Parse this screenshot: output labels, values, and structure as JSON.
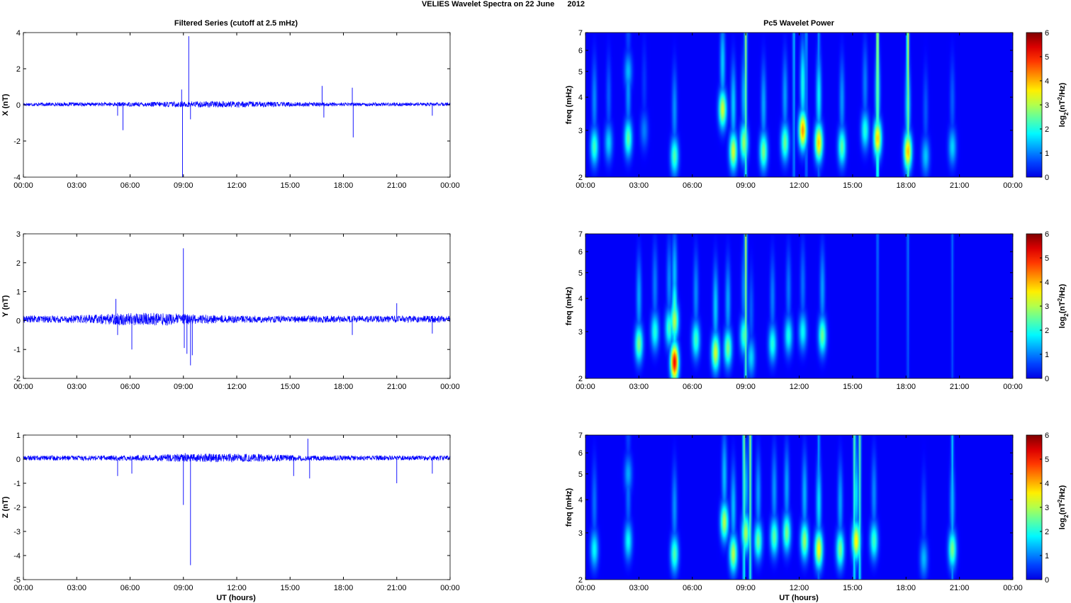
{
  "figure": {
    "suptitle": "VELIES Wavelet Spectra on 22 June      2012",
    "left_title": "Filtered Series (cutoff at 2.5 mHz)",
    "right_title": "Pc5 Wavelet Power",
    "xlabel": "UT (hours)",
    "freq_ylabel": "freq (mHz)",
    "colorbar_label": "log₂(nT²/Hz)",
    "time_ticks": [
      "00:00",
      "03:00",
      "06:00",
      "09:00",
      "12:00",
      "15:00",
      "18:00",
      "21:00",
      "00:00"
    ],
    "colors": {
      "series": "#0000ff",
      "background": "#00008f",
      "axes": "#000000"
    }
  },
  "chart_data": [
    {
      "type": "line",
      "name": "Filtered X",
      "ylabel": "X (nT)",
      "x_range_hours": [
        0,
        24
      ],
      "ylim": [
        -4,
        4
      ],
      "yticks": [
        -4,
        -2,
        0,
        2,
        4
      ],
      "baseline": 0.03,
      "noise_amplitude": 0.1,
      "spikes": [
        {
          "t": 5.6,
          "v": -1.4
        },
        {
          "t": 5.3,
          "v": -0.6
        },
        {
          "t": 8.9,
          "v": 0.85
        },
        {
          "t": 8.95,
          "v": -4.0
        },
        {
          "t": 9.3,
          "v": 3.8
        },
        {
          "t": 9.4,
          "v": -0.8
        },
        {
          "t": 16.8,
          "v": 1.05
        },
        {
          "t": 16.9,
          "v": -0.7
        },
        {
          "t": 18.5,
          "v": 0.95
        },
        {
          "t": 18.55,
          "v": -1.8
        },
        {
          "t": 23.0,
          "v": -0.6
        }
      ]
    },
    {
      "type": "line",
      "name": "Filtered Y",
      "ylabel": "Y (nT)",
      "x_range_hours": [
        0,
        24
      ],
      "ylim": [
        -2,
        3
      ],
      "yticks": [
        -2,
        -1,
        0,
        1,
        2,
        3
      ],
      "baseline": 0.05,
      "noise_amplitude": 0.12,
      "spikes": [
        {
          "t": 5.2,
          "v": 0.75
        },
        {
          "t": 5.3,
          "v": -0.5
        },
        {
          "t": 6.1,
          "v": -1.0
        },
        {
          "t": 9.0,
          "v": 2.5
        },
        {
          "t": 9.05,
          "v": -0.95
        },
        {
          "t": 9.2,
          "v": -1.15
        },
        {
          "t": 9.4,
          "v": -1.55
        },
        {
          "t": 9.5,
          "v": -1.2
        },
        {
          "t": 18.5,
          "v": -0.5
        },
        {
          "t": 21.0,
          "v": 0.6
        },
        {
          "t": 23.0,
          "v": -0.45
        }
      ]
    },
    {
      "type": "line",
      "name": "Filtered Z",
      "ylabel": "Z (nT)",
      "x_range_hours": [
        0,
        24
      ],
      "ylim": [
        -5,
        1
      ],
      "yticks": [
        -5,
        -4,
        -3,
        -2,
        -1,
        0,
        1
      ],
      "baseline": 0.05,
      "noise_amplitude": 0.1,
      "spikes": [
        {
          "t": 5.3,
          "v": -0.7
        },
        {
          "t": 6.1,
          "v": -0.6
        },
        {
          "t": 9.0,
          "v": -1.9
        },
        {
          "t": 9.1,
          "v": 0.25
        },
        {
          "t": 9.4,
          "v": -4.4
        },
        {
          "t": 15.2,
          "v": -0.7
        },
        {
          "t": 16.0,
          "v": 0.85
        },
        {
          "t": 16.1,
          "v": -0.8
        },
        {
          "t": 21.0,
          "v": -1.0
        },
        {
          "t": 23.0,
          "v": -0.6
        }
      ]
    },
    {
      "type": "heatmap",
      "name": "Pc5 Wavelet Power X",
      "x_range_hours": [
        0,
        24
      ],
      "ylim_mHz": [
        2,
        7
      ],
      "y_scale": "log",
      "yticks": [
        2,
        3,
        4,
        5,
        6,
        7
      ],
      "clim": [
        0,
        6
      ],
      "cticks": [
        0,
        1,
        2,
        3,
        4,
        5,
        6
      ],
      "colormap": "jet",
      "blobs": [
        {
          "t": 0.5,
          "f": 2.6,
          "p": 2.2
        },
        {
          "t": 1.3,
          "f": 2.7,
          "p": 1.5
        },
        {
          "t": 2.4,
          "f": 2.8,
          "p": 2.4
        },
        {
          "t": 2.4,
          "f": 5.0,
          "p": 1.3
        },
        {
          "t": 3.3,
          "f": 3.0,
          "p": 0.9
        },
        {
          "t": 5.0,
          "f": 2.4,
          "p": 2.3
        },
        {
          "t": 7.7,
          "f": 3.6,
          "p": 3.2
        },
        {
          "t": 8.3,
          "f": 2.5,
          "p": 3.2
        },
        {
          "t": 8.9,
          "f": 2.7,
          "p": 2.8
        },
        {
          "t": 10.0,
          "f": 2.5,
          "p": 2.6
        },
        {
          "t": 11.2,
          "f": 2.7,
          "p": 2.5
        },
        {
          "t": 12.2,
          "f": 3.0,
          "p": 4.2
        },
        {
          "t": 13.1,
          "f": 2.7,
          "p": 3.8
        },
        {
          "t": 14.4,
          "f": 2.6,
          "p": 2.4
        },
        {
          "t": 15.7,
          "f": 3.0,
          "p": 2.0
        },
        {
          "t": 16.4,
          "f": 2.8,
          "p": 3.8
        },
        {
          "t": 18.1,
          "f": 2.5,
          "p": 3.9
        },
        {
          "t": 19.1,
          "f": 2.4,
          "p": 1.4
        },
        {
          "t": 20.6,
          "f": 2.6,
          "p": 1.5
        }
      ],
      "streaks": [
        {
          "t": 9.0,
          "p": 2.8
        },
        {
          "t": 16.4,
          "p": 3.5
        },
        {
          "t": 18.1,
          "p": 3.3
        },
        {
          "t": 11.7,
          "p": 1.4
        },
        {
          "t": 12.4,
          "p": 1.2
        },
        {
          "t": 13.1,
          "p": 1.1
        }
      ]
    },
    {
      "type": "heatmap",
      "name": "Pc5 Wavelet Power Y",
      "x_range_hours": [
        0,
        24
      ],
      "ylim_mHz": [
        2,
        7
      ],
      "y_scale": "log",
      "yticks": [
        2,
        3,
        4,
        5,
        6,
        7
      ],
      "clim": [
        0,
        6
      ],
      "cticks": [
        0,
        1,
        2,
        3,
        4,
        5,
        6
      ],
      "colormap": "jet",
      "blobs": [
        {
          "t": 3.0,
          "f": 2.7,
          "p": 2.6
        },
        {
          "t": 3.9,
          "f": 3.0,
          "p": 2.0
        },
        {
          "t": 4.7,
          "f": 3.1,
          "p": 2.2
        },
        {
          "t": 5.0,
          "f": 2.3,
          "p": 5.2
        },
        {
          "t": 5.0,
          "f": 3.3,
          "p": 3.0
        },
        {
          "t": 6.2,
          "f": 2.8,
          "p": 2.2
        },
        {
          "t": 7.3,
          "f": 2.5,
          "p": 3.2
        },
        {
          "t": 8.0,
          "f": 2.6,
          "p": 2.6
        },
        {
          "t": 8.9,
          "f": 2.9,
          "p": 2.2
        },
        {
          "t": 9.3,
          "f": 2.4,
          "p": 1.5
        },
        {
          "t": 10.5,
          "f": 2.7,
          "p": 2.0
        },
        {
          "t": 11.4,
          "f": 2.9,
          "p": 1.9
        },
        {
          "t": 12.2,
          "f": 3.0,
          "p": 1.8
        },
        {
          "t": 13.3,
          "f": 2.9,
          "p": 2.5
        }
      ],
      "streaks": [
        {
          "t": 9.0,
          "p": 3.0
        },
        {
          "t": 16.4,
          "p": 0.9
        },
        {
          "t": 18.1,
          "p": 0.9
        },
        {
          "t": 20.6,
          "p": 0.8
        }
      ]
    },
    {
      "type": "heatmap",
      "name": "Pc5 Wavelet Power Z",
      "x_range_hours": [
        0,
        24
      ],
      "ylim_mHz": [
        2,
        7
      ],
      "y_scale": "log",
      "yticks": [
        2,
        3,
        4,
        5,
        6,
        7
      ],
      "clim": [
        0,
        6
      ],
      "cticks": [
        0,
        1,
        2,
        3,
        4,
        5,
        6
      ],
      "colormap": "jet",
      "blobs": [
        {
          "t": 0.5,
          "f": 2.6,
          "p": 1.8
        },
        {
          "t": 2.4,
          "f": 2.8,
          "p": 1.8
        },
        {
          "t": 2.4,
          "f": 5.0,
          "p": 1.2
        },
        {
          "t": 5.0,
          "f": 2.5,
          "p": 2.3
        },
        {
          "t": 7.8,
          "f": 3.3,
          "p": 3.0
        },
        {
          "t": 8.3,
          "f": 2.5,
          "p": 3.0
        },
        {
          "t": 9.0,
          "f": 3.0,
          "p": 2.9
        },
        {
          "t": 9.7,
          "f": 2.8,
          "p": 2.5
        },
        {
          "t": 10.6,
          "f": 2.9,
          "p": 2.4
        },
        {
          "t": 11.3,
          "f": 3.0,
          "p": 2.6
        },
        {
          "t": 12.3,
          "f": 2.8,
          "p": 2.8
        },
        {
          "t": 13.1,
          "f": 2.6,
          "p": 3.5
        },
        {
          "t": 14.3,
          "f": 2.6,
          "p": 2.6
        },
        {
          "t": 15.2,
          "f": 2.8,
          "p": 3.6
        },
        {
          "t": 16.2,
          "f": 2.8,
          "p": 2.2
        },
        {
          "t": 19.0,
          "f": 2.4,
          "p": 1.3
        },
        {
          "t": 20.6,
          "f": 2.6,
          "p": 2.6
        }
      ],
      "streaks": [
        {
          "t": 8.9,
          "p": 2.7
        },
        {
          "t": 9.25,
          "p": 2.9
        },
        {
          "t": 15.1,
          "p": 2.5
        },
        {
          "t": 15.4,
          "p": 2.5
        },
        {
          "t": 13.1,
          "p": 1.2
        },
        {
          "t": 20.6,
          "p": 1.5
        }
      ]
    }
  ]
}
